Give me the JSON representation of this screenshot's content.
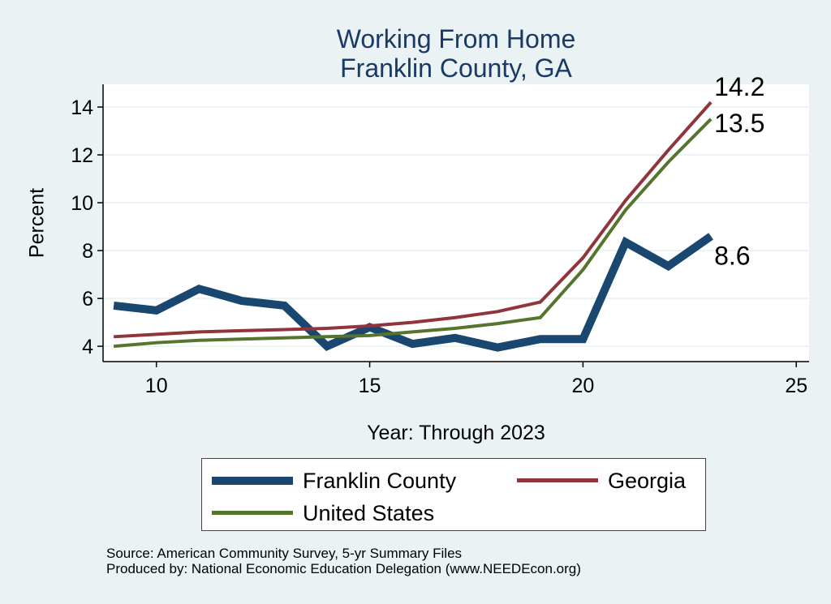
{
  "chart_data": {
    "type": "line",
    "title": "Working From Home",
    "subtitle": "Franklin County, GA",
    "xlabel": "Year: Through 2023",
    "ylabel": "Percent",
    "xlim": [
      8.75,
      25.3
    ],
    "ylim": [
      3.36,
      14.95
    ],
    "xticks": [
      10,
      15,
      20,
      25
    ],
    "yticks": [
      4,
      6,
      8,
      10,
      12,
      14
    ],
    "grid": true,
    "legend_position": "bottom",
    "x": [
      9,
      10,
      11,
      12,
      13,
      14,
      15,
      16,
      17,
      18,
      19,
      20,
      21,
      22,
      23
    ],
    "series": [
      {
        "name": "Franklin County",
        "color": "#1a476f",
        "values": [
          5.7,
          5.5,
          6.4,
          5.9,
          5.7,
          4.0,
          4.8,
          4.1,
          4.35,
          3.95,
          4.3,
          4.3,
          8.35,
          7.35,
          8.6
        ],
        "end_label": "8.6"
      },
      {
        "name": "Georgia",
        "color": "#90353b",
        "values": [
          4.4,
          4.5,
          4.6,
          4.65,
          4.7,
          4.75,
          4.85,
          5.0,
          5.2,
          5.45,
          5.85,
          7.7,
          10.1,
          12.2,
          14.2
        ],
        "end_label": "14.2"
      },
      {
        "name": "United States",
        "color": "#55752f",
        "values": [
          4.0,
          4.15,
          4.25,
          4.3,
          4.35,
          4.4,
          4.45,
          4.6,
          4.75,
          4.95,
          5.2,
          7.2,
          9.7,
          11.7,
          13.5
        ],
        "end_label": "13.5"
      }
    ]
  },
  "footer": {
    "source": "Source: American Community Survey, 5-yr Summary Files",
    "produced": "Produced by: National Economic Education Delegation (www.NEEDEcon.org)"
  }
}
